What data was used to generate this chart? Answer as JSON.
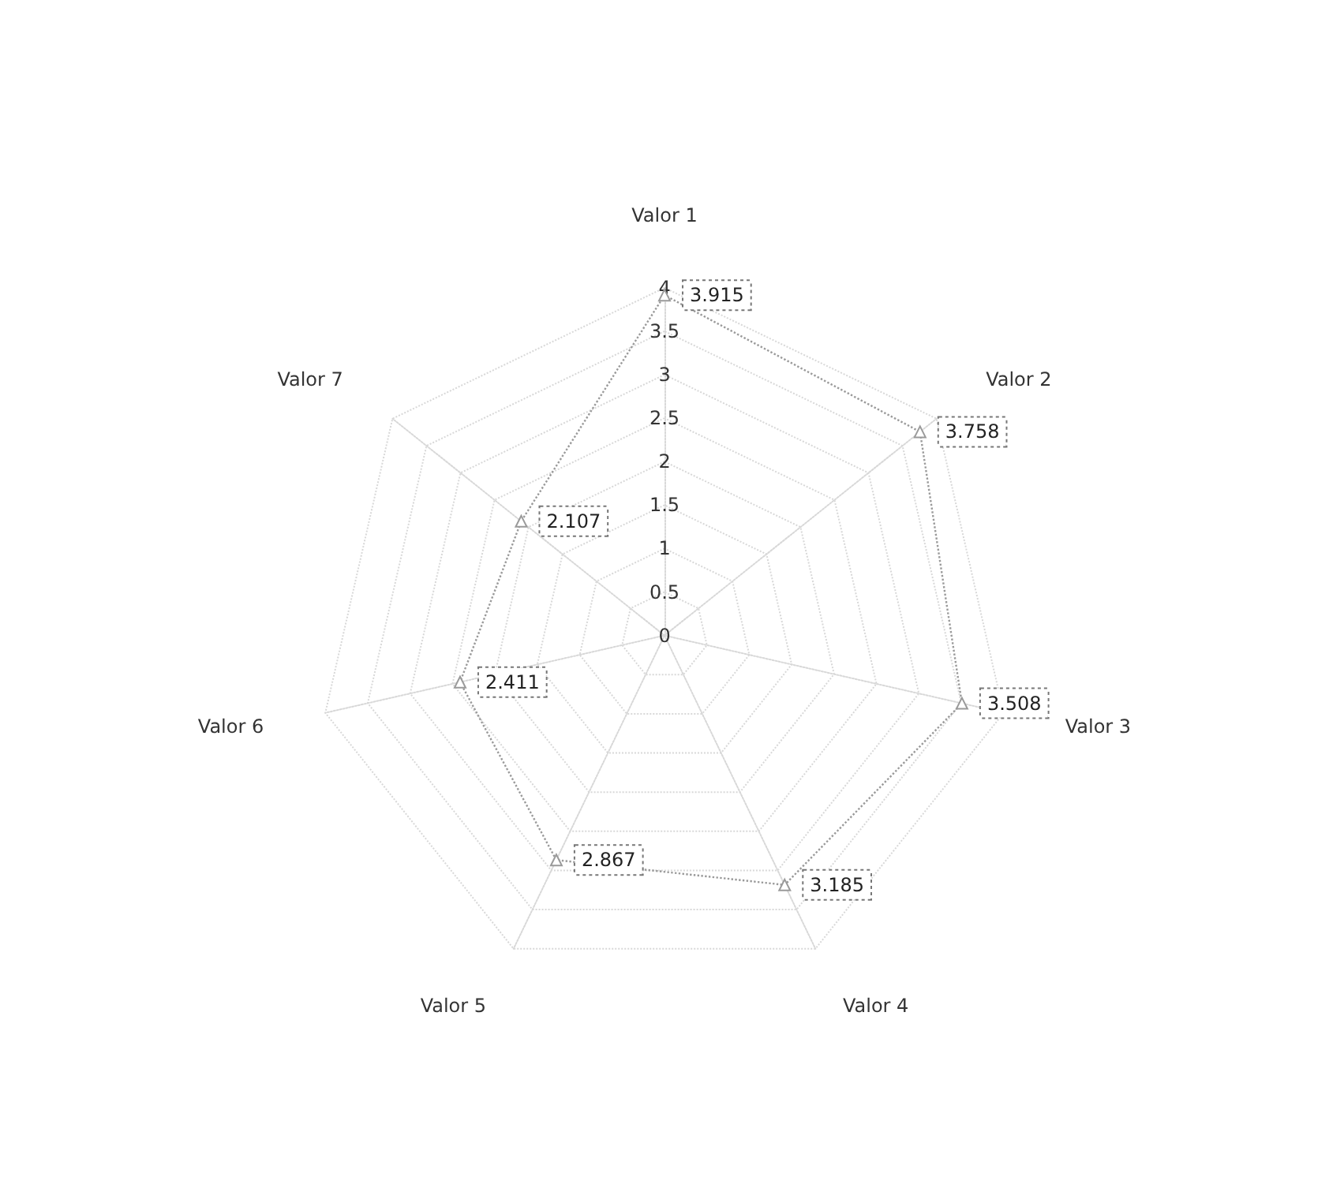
{
  "chart_data": {
    "type": "radar",
    "categories": [
      "Valor 1",
      "Valor 2",
      "Valor 3",
      "Valor 4",
      "Valor 5",
      "Valor 6",
      "Valor 7"
    ],
    "series": [
      {
        "color": "#9a9a9a",
        "values": [
          3.915,
          3.758,
          3.508,
          3.185,
          2.867,
          2.411,
          2.107
        ]
      }
    ],
    "ylim": [
      0,
      4
    ],
    "yticks": [
      0,
      0.5,
      1,
      1.5,
      2,
      2.5,
      3,
      3.5,
      4
    ],
    "data_labels": true,
    "marker": "triangle",
    "line_style": "dotted",
    "grid": true
  }
}
